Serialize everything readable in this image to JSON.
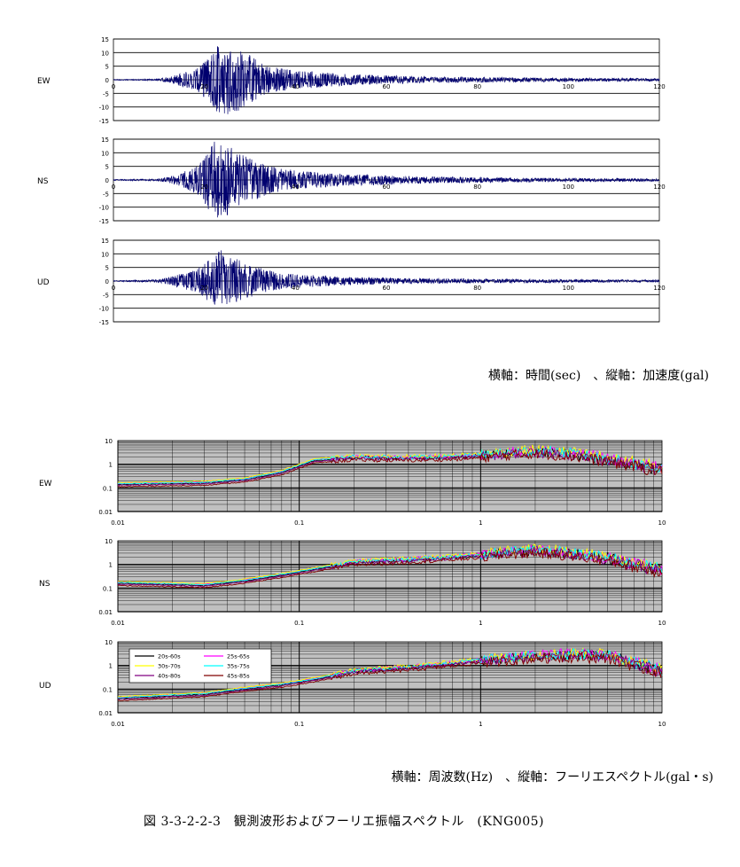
{
  "chart_data": [
    {
      "type": "line",
      "group": "waveform",
      "component": "EW",
      "xlim": [
        0,
        120
      ],
      "ylim": [
        -15,
        15
      ],
      "xticks": [
        0,
        20,
        40,
        60,
        80,
        100,
        120
      ],
      "yticks": [
        15,
        10,
        5,
        0,
        -5,
        -10,
        -15
      ],
      "xticklabels": [
        "0",
        "20",
        "40",
        "60",
        "80",
        "100",
        "120"
      ],
      "yticklabels": [
        "15",
        "10",
        "5",
        "0",
        "-5",
        "-10",
        "-15"
      ],
      "line_color": "#00006e",
      "grid": true,
      "envelope": [
        [
          0,
          0.15
        ],
        [
          10,
          0.3
        ],
        [
          13,
          1.5
        ],
        [
          18,
          4
        ],
        [
          21,
          8
        ],
        [
          23,
          13
        ],
        [
          25,
          14
        ],
        [
          27,
          12
        ],
        [
          30,
          9
        ],
        [
          34,
          5
        ],
        [
          40,
          3.5
        ],
        [
          50,
          2.2
        ],
        [
          60,
          1.6
        ],
        [
          70,
          1.1
        ],
        [
          80,
          0.9
        ],
        [
          90,
          0.8
        ],
        [
          100,
          0.7
        ],
        [
          110,
          0.6
        ],
        [
          120,
          0.5
        ]
      ]
    },
    {
      "type": "line",
      "group": "waveform",
      "component": "NS",
      "xlim": [
        0,
        120
      ],
      "ylim": [
        -15,
        15
      ],
      "xticks": [
        0,
        20,
        40,
        60,
        80,
        100,
        120
      ],
      "yticks": [
        15,
        10,
        5,
        0,
        -5,
        -10,
        -15
      ],
      "xticklabels": [
        "0",
        "20",
        "40",
        "60",
        "80",
        "100",
        "120"
      ],
      "yticklabels": [
        "15",
        "10",
        "5",
        "0",
        "-5",
        "-10",
        "-15"
      ],
      "line_color": "#00006e",
      "grid": true,
      "envelope": [
        [
          0,
          0.2
        ],
        [
          10,
          0.4
        ],
        [
          14,
          1.8
        ],
        [
          19,
          6
        ],
        [
          22,
          14
        ],
        [
          24,
          15
        ],
        [
          26,
          12
        ],
        [
          30,
          8
        ],
        [
          35,
          5
        ],
        [
          40,
          3.5
        ],
        [
          50,
          2.3
        ],
        [
          60,
          1.7
        ],
        [
          70,
          1.2
        ],
        [
          80,
          1.0
        ],
        [
          90,
          0.8
        ],
        [
          100,
          0.7
        ],
        [
          110,
          0.6
        ],
        [
          120,
          0.5
        ]
      ]
    },
    {
      "type": "line",
      "group": "waveform",
      "component": "UD",
      "xlim": [
        0,
        120
      ],
      "ylim": [
        -15,
        15
      ],
      "xticks": [
        0,
        20,
        40,
        60,
        80,
        100,
        120
      ],
      "yticks": [
        15,
        10,
        5,
        0,
        -5,
        -10,
        -15
      ],
      "xticklabels": [
        "0",
        "20",
        "40",
        "60",
        "80",
        "100",
        "120"
      ],
      "yticklabels": [
        "15",
        "10",
        "5",
        "0",
        "-5",
        "-10",
        "-15"
      ],
      "line_color": "#00006e",
      "grid": true,
      "envelope": [
        [
          0,
          0.15
        ],
        [
          10,
          0.5
        ],
        [
          13,
          2
        ],
        [
          18,
          4
        ],
        [
          22,
          9
        ],
        [
          24,
          12
        ],
        [
          26,
          9
        ],
        [
          30,
          6
        ],
        [
          35,
          3.5
        ],
        [
          40,
          2.5
        ],
        [
          50,
          1.6
        ],
        [
          60,
          1.2
        ],
        [
          70,
          0.9
        ],
        [
          80,
          0.8
        ],
        [
          90,
          0.7
        ],
        [
          100,
          0.6
        ],
        [
          110,
          0.5
        ],
        [
          120,
          0.4
        ]
      ]
    },
    {
      "type": "line",
      "group": "spectrum",
      "component": "EW",
      "xscale": "log",
      "yscale": "log",
      "xlim": [
        0.01,
        10
      ],
      "ylim": [
        0.01,
        10
      ],
      "xticks": [
        0.01,
        0.1,
        1,
        10
      ],
      "yticks": [
        10,
        1,
        0.1,
        0.01
      ],
      "xticklabels": [
        "0.01",
        "0.1",
        "1",
        "10"
      ],
      "yticklabels": [
        "10",
        "1",
        "0.1",
        "0.01"
      ],
      "background": "#c0c0c0",
      "grid": true,
      "trend": [
        [
          0.01,
          0.14
        ],
        [
          0.03,
          0.16
        ],
        [
          0.05,
          0.22
        ],
        [
          0.08,
          0.45
        ],
        [
          0.12,
          1.4
        ],
        [
          0.2,
          1.9
        ],
        [
          0.4,
          1.8
        ],
        [
          0.7,
          2.0
        ],
        [
          1.0,
          2.3
        ],
        [
          1.5,
          3.0
        ],
        [
          2.0,
          3.5
        ],
        [
          3.0,
          2.8
        ],
        [
          5.0,
          1.6
        ],
        [
          7.0,
          1.0
        ],
        [
          10,
          0.6
        ]
      ],
      "series": [
        {
          "name": "20s-60s",
          "color": "#000000",
          "scale": 1.0
        },
        {
          "name": "25s-65s",
          "color": "#ff00ff",
          "scale": 1.12
        },
        {
          "name": "30s-70s",
          "color": "#ffff00",
          "scale": 1.2
        },
        {
          "name": "35s-75s",
          "color": "#00ffff",
          "scale": 1.08
        },
        {
          "name": "40s-80s",
          "color": "#800080",
          "scale": 0.92
        },
        {
          "name": "45s-85s",
          "color": "#800000",
          "scale": 0.8
        }
      ]
    },
    {
      "type": "line",
      "group": "spectrum",
      "component": "NS",
      "xscale": "log",
      "yscale": "log",
      "xlim": [
        0.01,
        10
      ],
      "ylim": [
        0.01,
        10
      ],
      "xticks": [
        0.01,
        0.1,
        1,
        10
      ],
      "yticks": [
        10,
        1,
        0.1,
        0.01
      ],
      "xticklabels": [
        "0.01",
        "0.1",
        "1",
        "10"
      ],
      "yticklabels": [
        "10",
        "1",
        "0.1",
        "0.01"
      ],
      "background": "#c0c0c0",
      "grid": true,
      "trend": [
        [
          0.01,
          0.16
        ],
        [
          0.03,
          0.13
        ],
        [
          0.05,
          0.2
        ],
        [
          0.08,
          0.35
        ],
        [
          0.12,
          0.6
        ],
        [
          0.2,
          1.2
        ],
        [
          0.4,
          1.5
        ],
        [
          0.7,
          2.0
        ],
        [
          1.0,
          2.4
        ],
        [
          1.5,
          3.3
        ],
        [
          2.0,
          3.8
        ],
        [
          3.0,
          3.0
        ],
        [
          5.0,
          1.8
        ],
        [
          7.0,
          1.0
        ],
        [
          10,
          0.6
        ]
      ],
      "series": [
        {
          "name": "20s-60s",
          "color": "#000000",
          "scale": 1.0
        },
        {
          "name": "25s-65s",
          "color": "#ff00ff",
          "scale": 1.12
        },
        {
          "name": "30s-70s",
          "color": "#ffff00",
          "scale": 1.2
        },
        {
          "name": "35s-75s",
          "color": "#00ffff",
          "scale": 1.08
        },
        {
          "name": "40s-80s",
          "color": "#800080",
          "scale": 0.92
        },
        {
          "name": "45s-85s",
          "color": "#800000",
          "scale": 0.8
        }
      ]
    },
    {
      "type": "line",
      "group": "spectrum",
      "component": "UD",
      "xscale": "log",
      "yscale": "log",
      "xlim": [
        0.01,
        10
      ],
      "ylim": [
        0.01,
        10
      ],
      "xticks": [
        0.01,
        0.1,
        1,
        10
      ],
      "yticks": [
        10,
        1,
        0.1,
        0.01
      ],
      "xticklabels": [
        "0.01",
        "0.1",
        "1",
        "10"
      ],
      "yticklabels": [
        "10",
        "1",
        "0.1",
        "0.01"
      ],
      "background": "#c0c0c0",
      "grid": true,
      "legend": "top-left",
      "trend": [
        [
          0.01,
          0.04
        ],
        [
          0.03,
          0.06
        ],
        [
          0.05,
          0.1
        ],
        [
          0.08,
          0.15
        ],
        [
          0.12,
          0.25
        ],
        [
          0.2,
          0.55
        ],
        [
          0.4,
          0.8
        ],
        [
          0.7,
          1.2
        ],
        [
          1.0,
          1.6
        ],
        [
          1.5,
          2.0
        ],
        [
          2.0,
          2.4
        ],
        [
          3.0,
          2.8
        ],
        [
          5.0,
          2.6
        ],
        [
          7.0,
          1.2
        ],
        [
          10,
          0.6
        ]
      ],
      "series": [
        {
          "name": "20s-60s",
          "color": "#000000",
          "scale": 1.0
        },
        {
          "name": "25s-65s",
          "color": "#ff00ff",
          "scale": 1.12
        },
        {
          "name": "30s-70s",
          "color": "#ffff00",
          "scale": 1.2
        },
        {
          "name": "35s-75s",
          "color": "#00ffff",
          "scale": 1.08
        },
        {
          "name": "40s-80s",
          "color": "#800080",
          "scale": 0.92
        },
        {
          "name": "45s-85s",
          "color": "#800000",
          "scale": 0.8
        }
      ]
    }
  ],
  "waveform_axis_note": "横軸：時間(sec)　、縦軸：加速度(gal)",
  "spectrum_axis_note": "横軸：周波数(Hz)　、縦軸：フーリエスペクトル(gal・s)",
  "figure_caption": "図 3-3-2-2-3　観測波形およびフーリエ振幅スペクトル　(KNG005)"
}
